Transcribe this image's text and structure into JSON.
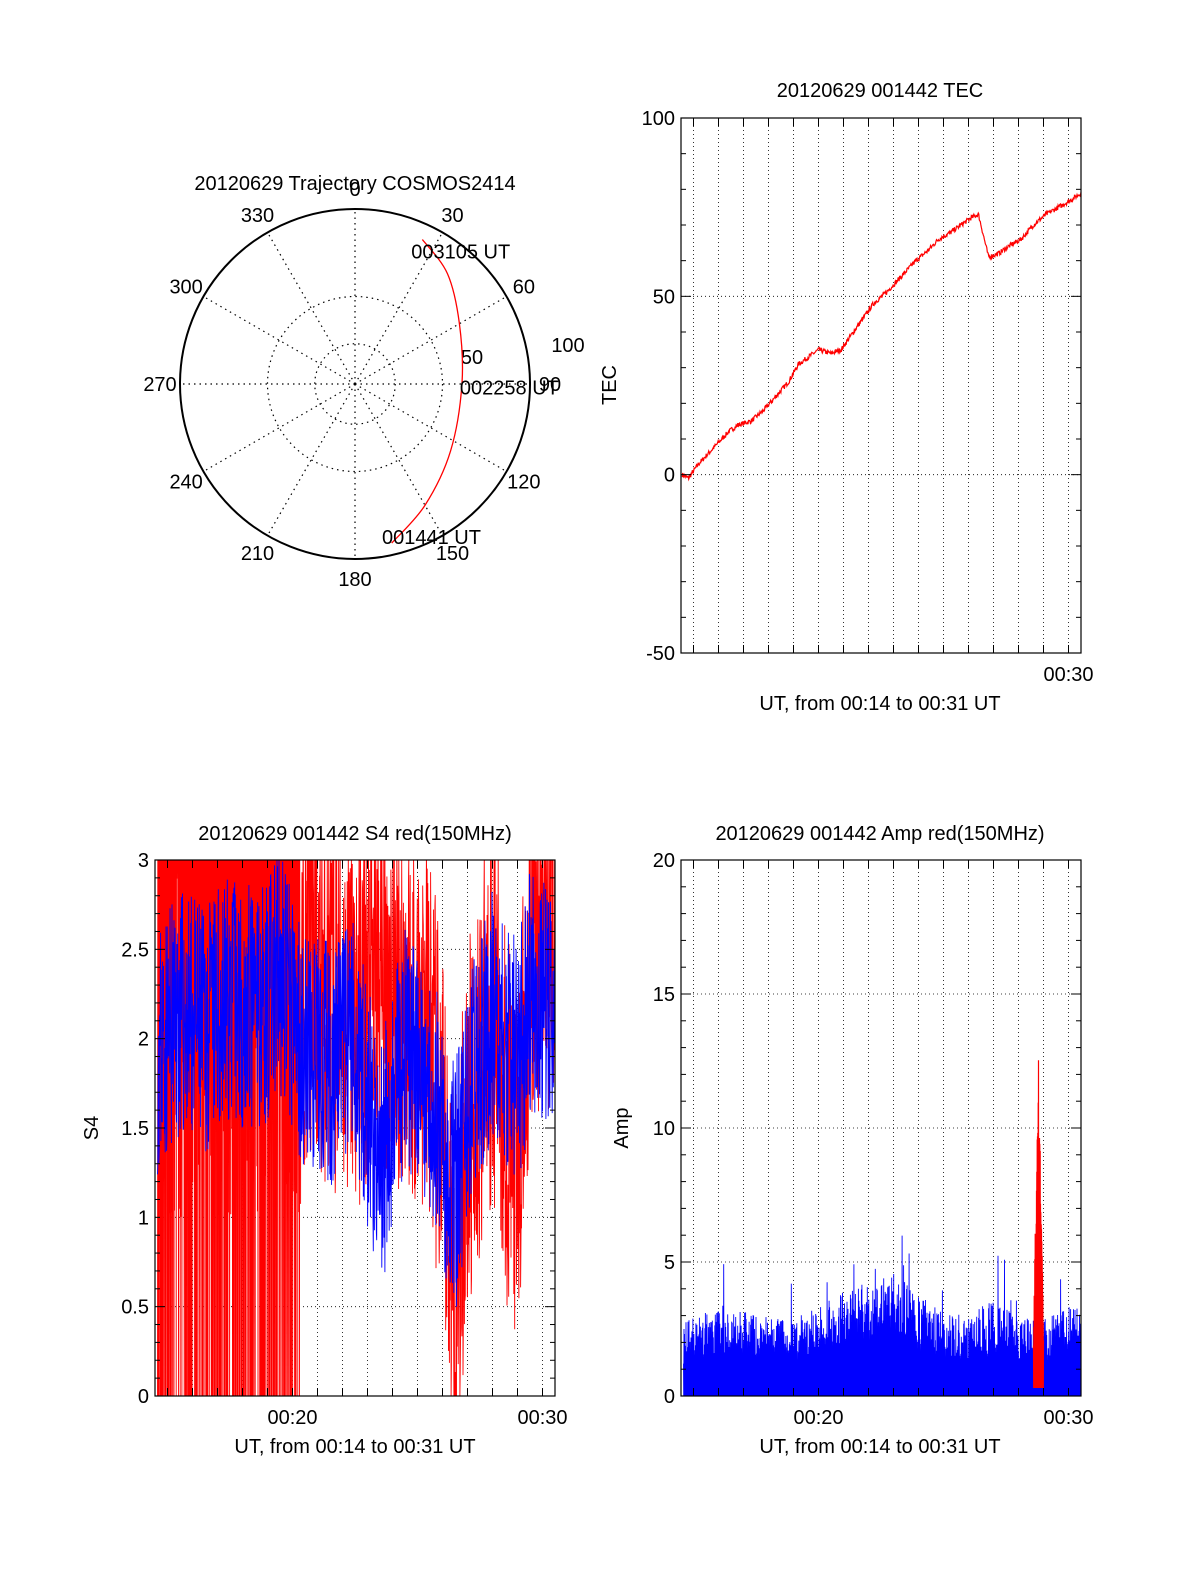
{
  "chart_data": [
    {
      "type": "polar",
      "title": "20120629 Trajectory COSMOS2414",
      "angle_labels": [
        "0",
        "30",
        "60",
        "90",
        "120",
        "150",
        "180",
        "210",
        "240",
        "270",
        "300",
        "330"
      ],
      "radial_labels": [
        "50",
        "100"
      ],
      "track_color": "#ff0000",
      "track": [
        {
          "azimuth": 167,
          "elevation": 6
        },
        {
          "azimuth": 150,
          "elevation": 18
        },
        {
          "azimuth": 125,
          "elevation": 30
        },
        {
          "azimuth": 90,
          "elevation": 35
        },
        {
          "azimuth": 60,
          "elevation": 28
        },
        {
          "azimuth": 40,
          "elevation": 16
        },
        {
          "azimuth": 25,
          "elevation": 8
        }
      ],
      "annotations": [
        {
          "text": "003105 UT",
          "azimuth": 23,
          "elevation": 16
        },
        {
          "text": "002258 UT",
          "azimuth": 92,
          "elevation": 36
        },
        {
          "text": "001441 UT",
          "azimuth": 170,
          "elevation": 10
        }
      ]
    },
    {
      "type": "line",
      "title": "20120629 001442 TEC",
      "xlabel": "UT, from 00:14 to 00:31 UT",
      "ylabel": "TEC",
      "xlim": [
        14.5,
        30.5
      ],
      "ylim": [
        -50,
        100
      ],
      "yticks": [
        -50,
        0,
        50,
        100
      ],
      "xticks": [
        {
          "value": 30,
          "label": "00:30"
        }
      ],
      "grid": true,
      "series": [
        {
          "color": "#ff0000",
          "points": [
            [
              14.55,
              0
            ],
            [
              14.8,
              -1
            ],
            [
              15.2,
              3
            ],
            [
              15.6,
              6
            ],
            [
              16,
              9
            ],
            [
              16.4,
              12
            ],
            [
              16.8,
              14
            ],
            [
              17.3,
              15
            ],
            [
              17.8,
              18
            ],
            [
              18.3,
              22
            ],
            [
              18.8,
              26
            ],
            [
              19.2,
              31
            ],
            [
              19.6,
              33
            ],
            [
              20,
              35
            ],
            [
              20.5,
              34
            ],
            [
              20.9,
              35
            ],
            [
              21.4,
              40
            ],
            [
              21.8,
              44
            ],
            [
              22.2,
              48
            ],
            [
              22.7,
              51
            ],
            [
              23.1,
              54
            ],
            [
              23.5,
              57
            ],
            [
              23.9,
              60
            ],
            [
              24.4,
              63
            ],
            [
              24.8,
              66
            ],
            [
              25.3,
              68
            ],
            [
              25.7,
              70
            ],
            [
              26.1,
              72
            ],
            [
              26.4,
              73
            ],
            [
              26.6,
              67
            ],
            [
              26.8,
              61
            ],
            [
              27.2,
              62
            ],
            [
              27.6,
              64
            ],
            [
              28.1,
              66
            ],
            [
              28.6,
              70
            ],
            [
              29.1,
              73
            ],
            [
              29.6,
              75
            ],
            [
              30.1,
              77
            ],
            [
              30.5,
              79
            ]
          ]
        }
      ]
    },
    {
      "type": "line",
      "title": "20120629 001442 S4 red(150MHz)",
      "xlabel": "UT, from 00:14 to 00:31 UT",
      "ylabel": "S4",
      "xlim": [
        14.5,
        30.5
      ],
      "ylim": [
        0,
        3
      ],
      "yticks": [
        0,
        0.5,
        1,
        1.5,
        2,
        2.5,
        3
      ],
      "xticks": [
        {
          "value": 20,
          "label": "00:20"
        },
        {
          "value": 30,
          "label": "00:30"
        }
      ],
      "grid": true,
      "series": [
        {
          "color": "#ff0000",
          "description_points": [
            [
              14.6,
              0
            ],
            [
              15.5,
              0
            ],
            [
              16.5,
              0
            ],
            [
              17.5,
              0
            ],
            [
              18.5,
              0
            ],
            [
              19.5,
              0
            ],
            [
              20.5,
              2.2
            ],
            [
              21.5,
              2.0
            ],
            [
              22.5,
              1.9
            ],
            [
              23.5,
              2.1
            ],
            [
              24.5,
              2.0
            ],
            [
              25.5,
              1.8
            ],
            [
              26.5,
              0.4
            ],
            [
              27,
              1.2
            ],
            [
              28,
              2.0
            ],
            [
              29,
              0.9
            ],
            [
              29.5,
              2.3
            ],
            [
              30.5,
              2.5
            ]
          ]
        },
        {
          "color": "#0000ff",
          "description_points": [
            [
              14.6,
              1.8
            ],
            [
              15.5,
              2.0
            ],
            [
              16.5,
              1.9
            ],
            [
              17.5,
              2.1
            ],
            [
              18.5,
              2.0
            ],
            [
              19.5,
              2.2
            ],
            [
              20.5,
              1.8
            ],
            [
              21.5,
              1.7
            ],
            [
              22.5,
              1.9
            ],
            [
              23.5,
              1.1
            ],
            [
              24.5,
              1.8
            ],
            [
              25.5,
              1.6
            ],
            [
              26.5,
              1.0
            ],
            [
              27,
              1.5
            ],
            [
              28,
              2.0
            ],
            [
              29,
              1.7
            ],
            [
              29.5,
              2.1
            ],
            [
              30.5,
              2.0
            ]
          ]
        }
      ]
    },
    {
      "type": "line",
      "title": "20120629 001442 Amp red(150MHz)",
      "xlabel": "UT, from 00:14 to 00:31 UT",
      "ylabel": "Amp",
      "xlim": [
        14.5,
        30.5
      ],
      "ylim": [
        0,
        20
      ],
      "yticks": [
        0,
        5,
        10,
        15,
        20
      ],
      "xticks": [
        {
          "value": 20,
          "label": "00:20"
        },
        {
          "value": 30,
          "label": "00:30"
        }
      ],
      "grid": true,
      "series": [
        {
          "color": "#0000ff",
          "description_points": [
            [
              14.6,
              2.2
            ],
            [
              16,
              2.5
            ],
            [
              17,
              2.4
            ],
            [
              18,
              2.3
            ],
            [
              19,
              2.2
            ],
            [
              20,
              2.6
            ],
            [
              21,
              3.0
            ],
            [
              22,
              3.3
            ],
            [
              23,
              3.6
            ],
            [
              24,
              3.0
            ],
            [
              25,
              2.4
            ],
            [
              26,
              2.3
            ],
            [
              27,
              2.8
            ],
            [
              28,
              2.2
            ],
            [
              29,
              2.3
            ],
            [
              30,
              2.6
            ],
            [
              30.5,
              2.8
            ]
          ]
        },
        {
          "color": "#ff0000",
          "description_points": [
            [
              28.6,
              2.5
            ],
            [
              28.8,
              13.3
            ],
            [
              29,
              2.6
            ]
          ]
        }
      ]
    }
  ]
}
